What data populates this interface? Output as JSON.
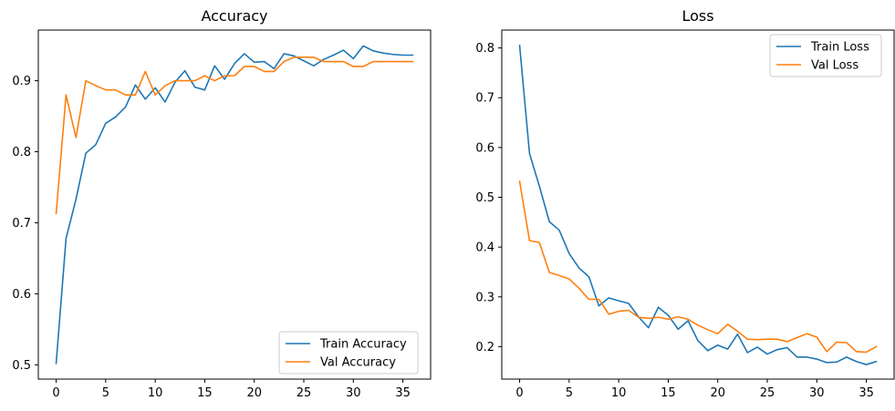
{
  "colors": {
    "train": "#1f77b4",
    "val": "#ff7f0e",
    "axes": "#000000",
    "legend_border": "#cccccc"
  },
  "chart_data": [
    {
      "type": "line",
      "title": "Accuracy",
      "xlabel": "",
      "ylabel": "",
      "xlim": [
        -1.8,
        37.8
      ],
      "ylim": [
        0.4799,
        0.9713
      ],
      "xticks": [
        0,
        5,
        10,
        15,
        20,
        25,
        30,
        35
      ],
      "yticks": [
        0.5,
        0.6,
        0.7,
        0.8,
        0.9
      ],
      "ytick_labels": [
        "0.5",
        "0.6",
        "0.7",
        "0.8",
        "0.9"
      ],
      "grid": false,
      "legend_position": "lower-right",
      "x": [
        0,
        1,
        2,
        3,
        4,
        5,
        6,
        7,
        8,
        9,
        10,
        11,
        12,
        13,
        14,
        15,
        16,
        17,
        18,
        19,
        20,
        21,
        22,
        23,
        24,
        25,
        26,
        27,
        28,
        29,
        30,
        31,
        32,
        33,
        34,
        35,
        36
      ],
      "series": [
        {
          "name": "Train Accuracy",
          "color_key": "train",
          "values": [
            0.502,
            0.678,
            0.733,
            0.798,
            0.81,
            0.84,
            0.849,
            0.863,
            0.894,
            0.874,
            0.89,
            0.87,
            0.898,
            0.914,
            0.891,
            0.887,
            0.921,
            0.902,
            0.924,
            0.938,
            0.926,
            0.927,
            0.917,
            0.938,
            0.935,
            0.928,
            0.921,
            0.93,
            0.936,
            0.943,
            0.931,
            0.949,
            0.942,
            0.939,
            0.937,
            0.936,
            0.936
          ]
        },
        {
          "name": "Val Accuracy",
          "color_key": "val",
          "values": [
            0.713,
            0.88,
            0.82,
            0.9,
            0.893,
            0.887,
            0.887,
            0.88,
            0.88,
            0.913,
            0.88,
            0.893,
            0.9,
            0.9,
            0.9,
            0.907,
            0.9,
            0.907,
            0.907,
            0.92,
            0.92,
            0.913,
            0.913,
            0.927,
            0.933,
            0.933,
            0.933,
            0.927,
            0.927,
            0.927,
            0.92,
            0.92,
            0.927,
            0.927,
            0.927,
            0.927,
            0.927
          ]
        }
      ]
    },
    {
      "type": "line",
      "title": "Loss",
      "xlabel": "",
      "ylabel": "",
      "xlim": [
        -1.8,
        37.8
      ],
      "ylim": [
        0.1348,
        0.8359
      ],
      "xticks": [
        0,
        5,
        10,
        15,
        20,
        25,
        30,
        35
      ],
      "yticks": [
        0.2,
        0.3,
        0.4,
        0.5,
        0.6,
        0.7,
        0.8
      ],
      "ytick_labels": [
        "0.2",
        "0.3",
        "0.4",
        "0.5",
        "0.6",
        "0.7",
        "0.8"
      ],
      "grid": false,
      "legend_position": "upper-right",
      "x": [
        0,
        1,
        2,
        3,
        4,
        5,
        6,
        7,
        8,
        9,
        10,
        11,
        12,
        13,
        14,
        15,
        16,
        17,
        18,
        19,
        20,
        21,
        22,
        23,
        24,
        25,
        26,
        27,
        28,
        29,
        30,
        31,
        32,
        33,
        34,
        35,
        36
      ],
      "series": [
        {
          "name": "Train Loss",
          "color_key": "train",
          "values": [
            0.805,
            0.588,
            0.522,
            0.451,
            0.434,
            0.387,
            0.358,
            0.34,
            0.282,
            0.298,
            0.292,
            0.287,
            0.26,
            0.238,
            0.279,
            0.263,
            0.235,
            0.252,
            0.212,
            0.192,
            0.203,
            0.195,
            0.225,
            0.188,
            0.199,
            0.185,
            0.194,
            0.198,
            0.179,
            0.179,
            0.175,
            0.168,
            0.169,
            0.179,
            0.17,
            0.164,
            0.17
          ]
        },
        {
          "name": "Val Loss",
          "color_key": "val",
          "values": [
            0.532,
            0.413,
            0.409,
            0.349,
            0.343,
            0.336,
            0.317,
            0.295,
            0.295,
            0.265,
            0.271,
            0.273,
            0.259,
            0.257,
            0.259,
            0.255,
            0.26,
            0.255,
            0.243,
            0.234,
            0.226,
            0.245,
            0.231,
            0.215,
            0.214,
            0.215,
            0.215,
            0.21,
            0.218,
            0.226,
            0.219,
            0.19,
            0.209,
            0.208,
            0.19,
            0.189,
            0.2
          ]
        }
      ]
    }
  ]
}
